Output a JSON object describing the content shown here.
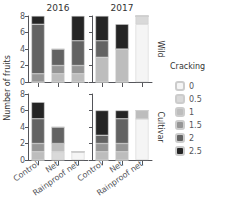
{
  "chart_data": [
    {
      "type": "bar",
      "stacked": true,
      "title": "2016",
      "ylabel": "Number of fruits",
      "categories": [
        "Control",
        "Net",
        "Rainproof net"
      ],
      "series": [
        {
          "name": "0",
          "color": "#f5f5f5",
          "values": [
            0,
            0,
            0
          ]
        },
        {
          "name": "0.5",
          "color": "#d9d9d9",
          "values": [
            0,
            0,
            0
          ]
        },
        {
          "name": "1",
          "color": "#bdbdbd",
          "values": [
            0,
            1,
            1
          ]
        },
        {
          "name": "1.5",
          "color": "#969696",
          "values": [
            1,
            1,
            1
          ]
        },
        {
          "name": "2",
          "color": "#636363",
          "values": [
            6,
            2,
            3
          ]
        },
        {
          "name": "2.5",
          "color": "#252525",
          "values": [
            1,
            0,
            3
          ]
        }
      ],
      "ylim": [
        0,
        8
      ],
      "yticks": [
        0,
        2,
        4,
        6,
        8
      ],
      "grid": false,
      "tick_labels": "y"
    },
    {
      "type": "bar",
      "stacked": true,
      "title": "2017",
      "annotations": [
        "Wild"
      ],
      "legend": "right",
      "legend_title": "Cracking",
      "categories": [
        "Control",
        "Net",
        "Rainproof net"
      ],
      "series": [
        {
          "name": "0",
          "color": "#f5f5f5",
          "values": [
            0,
            0,
            7
          ]
        },
        {
          "name": "0.5",
          "color": "#d9d9d9",
          "values": [
            0,
            0,
            1
          ]
        },
        {
          "name": "1",
          "color": "#bdbdbd",
          "values": [
            3,
            4,
            0
          ]
        },
        {
          "name": "1.5",
          "color": "#969696",
          "values": [
            0,
            0,
            0
          ]
        },
        {
          "name": "2",
          "color": "#636363",
          "values": [
            2,
            0,
            0
          ]
        },
        {
          "name": "2.5",
          "color": "#252525",
          "values": [
            3,
            3,
            0
          ]
        }
      ],
      "ylim": [
        0,
        8
      ],
      "yticks": [
        0,
        2,
        4,
        6,
        8
      ],
      "grid": false,
      "tick_labels": false
    },
    {
      "type": "bar",
      "stacked": true,
      "categories": [
        "Control",
        "Net",
        "Rainproof net"
      ],
      "series": [
        {
          "name": "0",
          "color": "#f5f5f5",
          "values": [
            0,
            0,
            1
          ]
        },
        {
          "name": "0.5",
          "color": "#d9d9d9",
          "values": [
            0,
            1,
            0
          ]
        },
        {
          "name": "1",
          "color": "#bdbdbd",
          "values": [
            1,
            1,
            0
          ]
        },
        {
          "name": "1.5",
          "color": "#969696",
          "values": [
            1,
            0,
            0
          ]
        },
        {
          "name": "2",
          "color": "#636363",
          "values": [
            3,
            2,
            0
          ]
        },
        {
          "name": "2.5",
          "color": "#252525",
          "values": [
            2,
            0,
            0
          ]
        }
      ],
      "ylim": [
        0,
        8
      ],
      "yticks": [
        0,
        2,
        4,
        6,
        8
      ],
      "grid": false,
      "tick_labels": true
    },
    {
      "type": "bar",
      "stacked": true,
      "annotations": [
        "Cultivar"
      ],
      "categories": [
        "Control",
        "Net",
        "Rainproof net"
      ],
      "series": [
        {
          "name": "0",
          "color": "#f5f5f5",
          "values": [
            0,
            0,
            5
          ]
        },
        {
          "name": "0.5",
          "color": "#d9d9d9",
          "values": [
            0,
            0,
            0
          ]
        },
        {
          "name": "1",
          "color": "#bdbdbd",
          "values": [
            1,
            1,
            1
          ]
        },
        {
          "name": "1.5",
          "color": "#969696",
          "values": [
            1,
            1,
            0
          ]
        },
        {
          "name": "2",
          "color": "#636363",
          "values": [
            1,
            3,
            0
          ]
        },
        {
          "name": "2.5",
          "color": "#252525",
          "values": [
            3,
            1,
            0
          ]
        }
      ],
      "ylim": [
        0,
        8
      ],
      "yticks": [
        0,
        2,
        4,
        6,
        8
      ],
      "grid": false,
      "tick_labels": "x"
    }
  ]
}
